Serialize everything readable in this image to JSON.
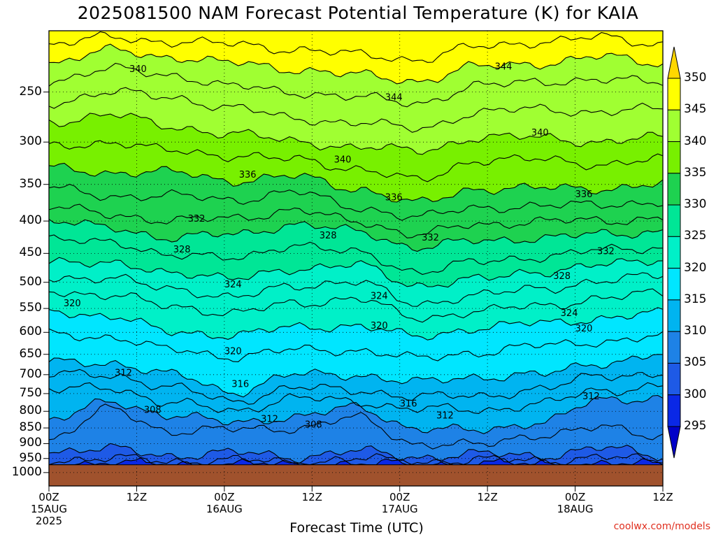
{
  "title": "2025081500 NAM Forecast Potential Temperature (K) for KAIA",
  "xlabel": "Forecast Time (UTC)",
  "credit": "coolwx.com/models",
  "chart_data": {
    "type": "heatmap",
    "title": "2025081500 NAM Forecast Potential Temperature (K) for KAIA",
    "xlabel": "Forecast Time (UTC)",
    "ylabel": "",
    "y_scale": "log-pressure",
    "ylim": [
      1050,
      200
    ],
    "xlim": [
      0,
      84
    ],
    "x_ticks": [
      {
        "hour": 0,
        "lines": [
          "00Z",
          "15AUG",
          "2025"
        ]
      },
      {
        "hour": 12,
        "lines": [
          "12Z"
        ]
      },
      {
        "hour": 24,
        "lines": [
          "00Z",
          "16AUG"
        ]
      },
      {
        "hour": 36,
        "lines": [
          "12Z"
        ]
      },
      {
        "hour": 48,
        "lines": [
          "00Z",
          "17AUG"
        ]
      },
      {
        "hour": 60,
        "lines": [
          "12Z"
        ]
      },
      {
        "hour": 72,
        "lines": [
          "00Z",
          "18AUG"
        ]
      },
      {
        "hour": 84,
        "lines": [
          "12Z"
        ]
      }
    ],
    "y_ticks": [
      250,
      300,
      350,
      400,
      450,
      500,
      550,
      600,
      650,
      700,
      750,
      800,
      850,
      900,
      950,
      1000
    ],
    "surface_pressure": 972,
    "grid": true,
    "colorbar": {
      "levels": [
        295,
        300,
        305,
        310,
        315,
        320,
        325,
        330,
        335,
        340,
        345,
        350
      ],
      "colors": [
        "#0000c8",
        "#0a28e6",
        "#1e5ae6",
        "#1e82e6",
        "#00b4f0",
        "#00e6ff",
        "#00f0c8",
        "#00e696",
        "#1ed250",
        "#78f000",
        "#a0ff32",
        "#ffff00",
        "#ffd700"
      ]
    },
    "isentropes": [
      {
        "theta": 300,
        "p": [
          972,
          965,
          970,
          968,
          972,
          968,
          970,
          966,
          970,
          968,
          972
        ]
      },
      {
        "theta": 304,
        "p": [
          955,
          950,
          960,
          955,
          965,
          950,
          962,
          955,
          958,
          945,
          960
        ]
      },
      {
        "theta": 306,
        "p": [
          925,
          918,
          940,
          930,
          945,
          925,
          945,
          935,
          940,
          915,
          940
        ]
      },
      {
        "theta": 308,
        "p": [
          885,
          795,
          860,
          855,
          850,
          820,
          900,
          905,
          870,
          850,
          875
        ]
      },
      {
        "theta": 310,
        "p": [
          825,
          775,
          810,
          835,
          815,
          790,
          850,
          860,
          830,
          770,
          760
        ]
      },
      {
        "theta": 312,
        "p": [
          740,
          735,
          775,
          800,
          760,
          775,
          790,
          800,
          775,
          745,
          725
        ]
      },
      {
        "theta": 314,
        "p": [
          700,
          700,
          735,
          770,
          735,
          740,
          760,
          755,
          740,
          700,
          700
        ]
      },
      {
        "theta": 316,
        "p": [
          670,
          670,
          700,
          745,
          700,
          700,
          720,
          705,
          700,
          670,
          650
        ]
      },
      {
        "theta": 318,
        "p": [
          605,
          610,
          640,
          655,
          640,
          640,
          660,
          645,
          630,
          620,
          610
        ]
      },
      {
        "theta": 320,
        "p": [
          555,
          565,
          600,
          605,
          590,
          585,
          610,
          590,
          580,
          570,
          560
        ]
      },
      {
        "theta": 322,
        "p": [
          515,
          525,
          545,
          560,
          540,
          530,
          570,
          555,
          545,
          530,
          520
        ]
      },
      {
        "theta": 324,
        "p": [
          490,
          495,
          510,
          530,
          505,
          500,
          540,
          525,
          510,
          500,
          485
        ]
      },
      {
        "theta": 326,
        "p": [
          460,
          470,
          480,
          495,
          475,
          470,
          505,
          495,
          480,
          470,
          460
        ]
      },
      {
        "theta": 328,
        "p": [
          425,
          435,
          450,
          460,
          435,
          450,
          480,
          465,
          455,
          445,
          440
        ]
      },
      {
        "theta": 330,
        "p": [
          400,
          410,
          425,
          420,
          405,
          415,
          440,
          430,
          425,
          420,
          415
        ]
      },
      {
        "theta": 332,
        "p": [
          380,
          390,
          400,
          395,
          385,
          400,
          420,
          405,
          400,
          400,
          395
        ]
      },
      {
        "theta": 334,
        "p": [
          355,
          365,
          365,
          370,
          360,
          380,
          395,
          380,
          380,
          375,
          375
        ]
      },
      {
        "theta": 336,
        "p": [
          330,
          335,
          335,
          345,
          340,
          355,
          375,
          355,
          355,
          355,
          350
        ]
      },
      {
        "theta": 338,
        "p": [
          305,
          300,
          310,
          315,
          320,
          330,
          345,
          320,
          320,
          325,
          320
        ]
      },
      {
        "theta": 340,
        "p": [
          280,
          270,
          285,
          290,
          300,
          305,
          310,
          295,
          295,
          300,
          295
        ]
      },
      {
        "theta": 342,
        "p": [
          260,
          250,
          255,
          265,
          275,
          280,
          285,
          270,
          265,
          270,
          265
        ]
      },
      {
        "theta": 344,
        "p": [
          240,
          230,
          235,
          245,
          250,
          255,
          260,
          245,
          240,
          240,
          240
        ]
      },
      {
        "theta": 346,
        "p": [
          225,
          215,
          220,
          225,
          230,
          235,
          240,
          228,
          225,
          220,
          225
        ]
      },
      {
        "theta": 348,
        "p": [
          210,
          205,
          208,
          210,
          214,
          218,
          222,
          212,
          208,
          205,
          210
        ]
      }
    ],
    "isentrope_hours": [
      0,
      8.4,
      16.8,
      25.2,
      33.6,
      42,
      50.4,
      58.8,
      67.2,
      75.6,
      84
    ],
    "contour_labels": [
      {
        "text": "340",
        "hour": 11,
        "p": 230
      },
      {
        "text": "344",
        "hour": 46,
        "p": 255
      },
      {
        "text": "344",
        "hour": 61,
        "p": 228
      },
      {
        "text": "340",
        "hour": 39,
        "p": 320
      },
      {
        "text": "340",
        "hour": 66,
        "p": 290
      },
      {
        "text": "336",
        "hour": 26,
        "p": 338
      },
      {
        "text": "336",
        "hour": 46,
        "p": 367
      },
      {
        "text": "336",
        "hour": 72,
        "p": 363
      },
      {
        "text": "332",
        "hour": 19,
        "p": 397
      },
      {
        "text": "332",
        "hour": 51,
        "p": 425
      },
      {
        "text": "332",
        "hour": 75,
        "p": 447
      },
      {
        "text": "328",
        "hour": 17,
        "p": 444
      },
      {
        "text": "328",
        "hour": 37,
        "p": 422
      },
      {
        "text": "328",
        "hour": 69,
        "p": 489
      },
      {
        "text": "324",
        "hour": 24,
        "p": 504
      },
      {
        "text": "324",
        "hour": 44,
        "p": 526
      },
      {
        "text": "324",
        "hour": 70,
        "p": 560
      },
      {
        "text": "320",
        "hour": 2,
        "p": 540
      },
      {
        "text": "320",
        "hour": 44,
        "p": 586
      },
      {
        "text": "320",
        "hour": 72,
        "p": 592
      },
      {
        "text": "320",
        "hour": 24,
        "p": 643
      },
      {
        "text": "316",
        "hour": 25,
        "p": 725
      },
      {
        "text": "316",
        "hour": 48,
        "p": 778
      },
      {
        "text": "312",
        "hour": 9,
        "p": 696
      },
      {
        "text": "312",
        "hour": 29,
        "p": 823
      },
      {
        "text": "312",
        "hour": 53,
        "p": 813
      },
      {
        "text": "312",
        "hour": 73,
        "p": 758
      },
      {
        "text": "308",
        "hour": 13,
        "p": 796
      },
      {
        "text": "308",
        "hour": 35,
        "p": 840
      }
    ]
  }
}
